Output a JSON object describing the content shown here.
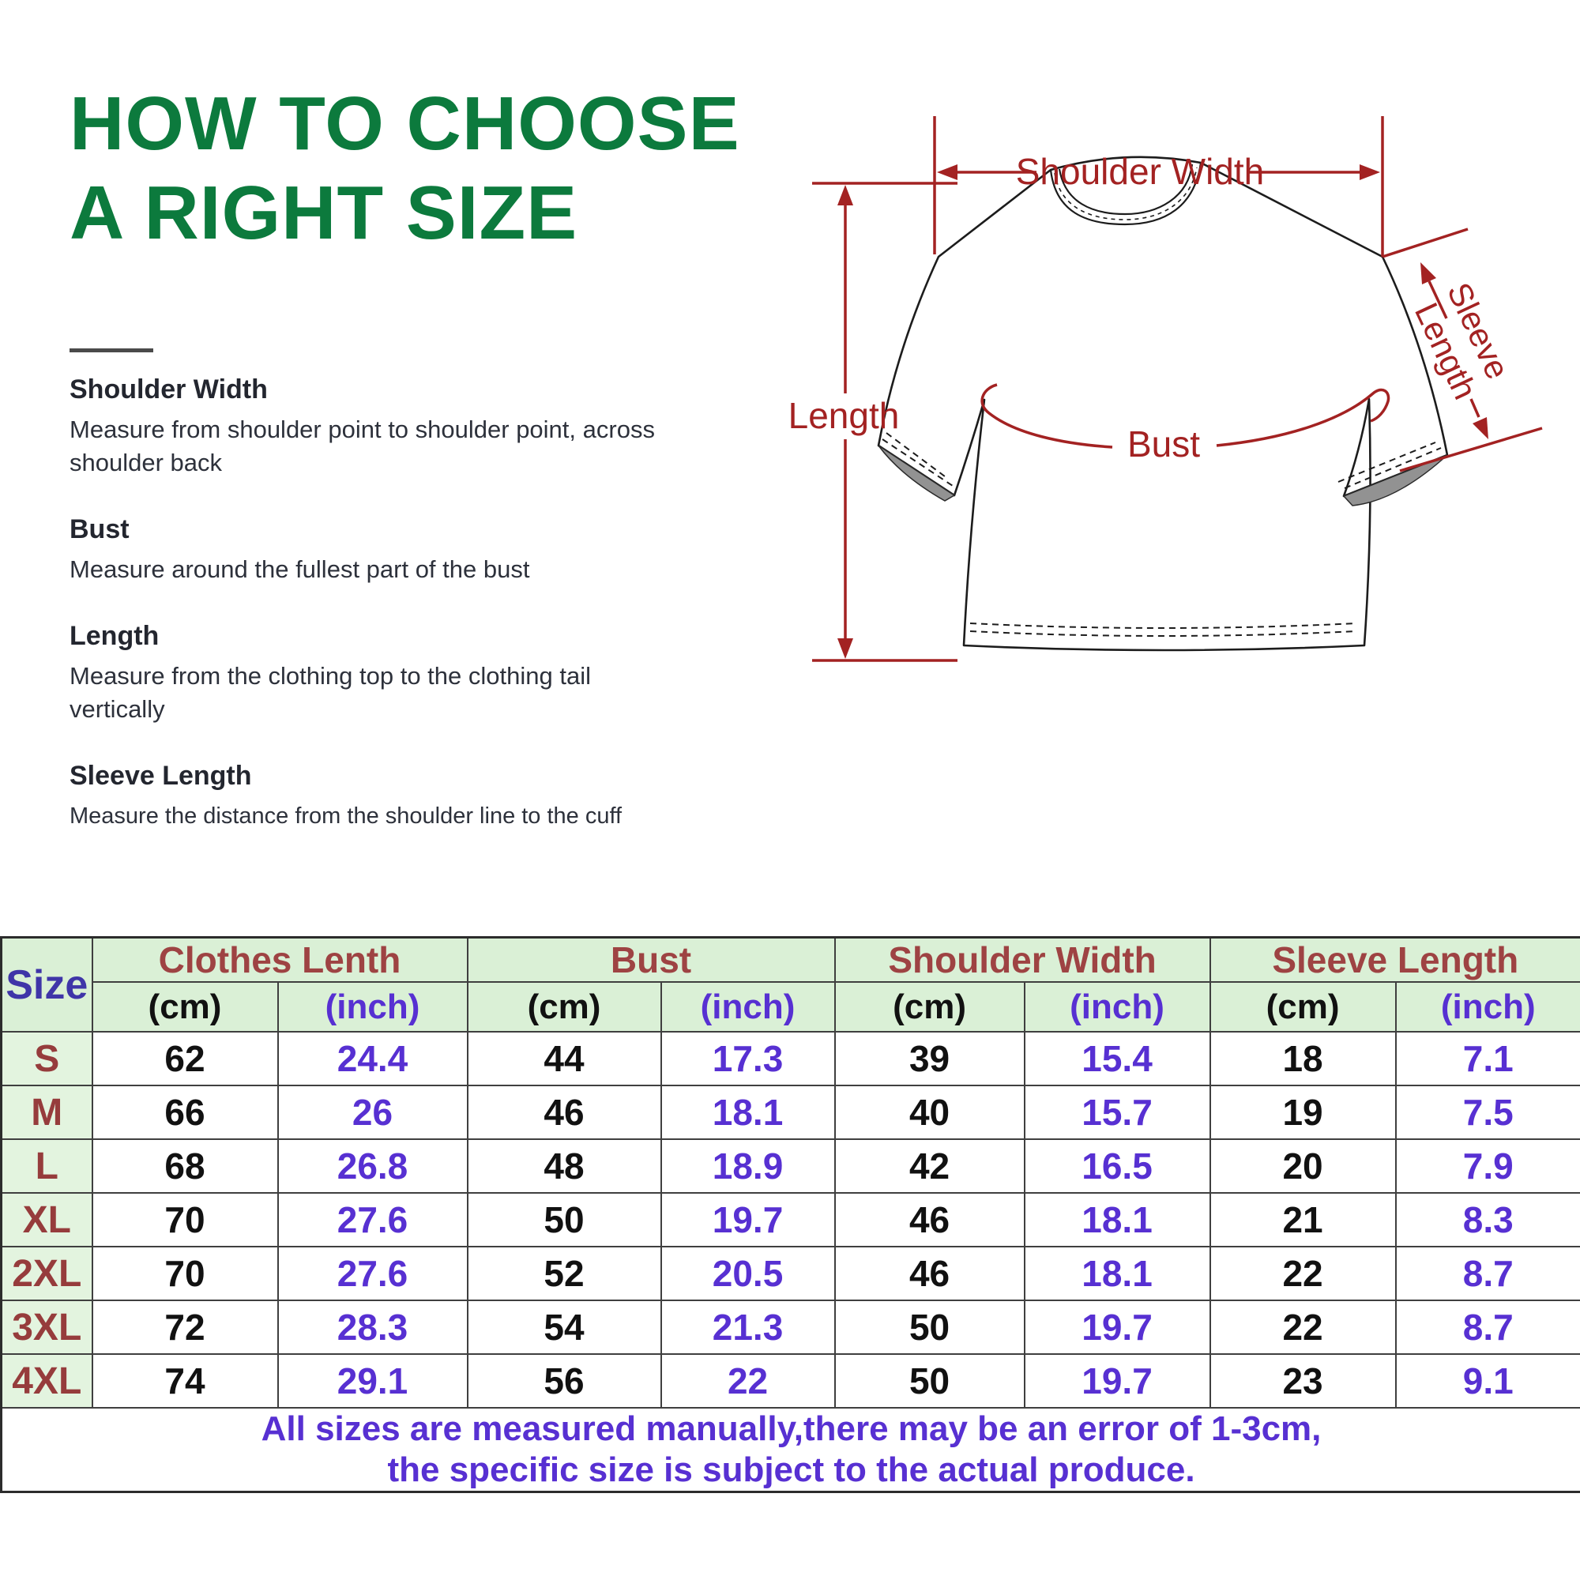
{
  "title": {
    "line1": "HOW TO CHOOSE",
    "line2": "A RIGHT SIZE"
  },
  "instructions": [
    {
      "heading": "Shoulder Width",
      "text": "Measure from shoulder point to shoulder point, across shoulder back"
    },
    {
      "heading": "Bust",
      "text": "Measure around the fullest part of the bust"
    },
    {
      "heading": "Length",
      "text": "Measure from the clothing top to the clothing tail vertically"
    },
    {
      "heading": "Sleeve Length",
      "text": "Measure the distance from the shoulder line to the cuff"
    }
  ],
  "diagram": {
    "labels": {
      "shoulder_width": "Shoulder Width",
      "length": "Length",
      "bust": "Bust",
      "sleeve_line1": "Sleeve",
      "sleeve_line2": "Length"
    }
  },
  "table": {
    "size_header": "Size",
    "col_groups": [
      "Clothes Lenth",
      "Bust",
      "Shoulder Width",
      "Sleeve Length"
    ],
    "unit_cm": "(cm)",
    "unit_inch": "(inch)",
    "rows": [
      {
        "size": "S",
        "values": [
          "62",
          "24.4",
          "44",
          "17.3",
          "39",
          "15.4",
          "18",
          "7.1"
        ]
      },
      {
        "size": "M",
        "values": [
          "66",
          "26",
          "46",
          "18.1",
          "40",
          "15.7",
          "19",
          "7.5"
        ]
      },
      {
        "size": "L",
        "values": [
          "68",
          "26.8",
          "48",
          "18.9",
          "42",
          "16.5",
          "20",
          "7.9"
        ]
      },
      {
        "size": "XL",
        "values": [
          "70",
          "27.6",
          "50",
          "19.7",
          "46",
          "18.1",
          "21",
          "8.3"
        ]
      },
      {
        "size": "2XL",
        "values": [
          "70",
          "27.6",
          "52",
          "20.5",
          "46",
          "18.1",
          "22",
          "8.7"
        ]
      },
      {
        "size": "3XL",
        "values": [
          "72",
          "28.3",
          "54",
          "21.3",
          "50",
          "19.7",
          "22",
          "8.7"
        ]
      },
      {
        "size": "4XL",
        "values": [
          "74",
          "29.1",
          "56",
          "22",
          "50",
          "19.7",
          "23",
          "9.1"
        ]
      }
    ],
    "footer": [
      "All sizes are measured manually,there may be an error of 1-3cm,",
      "the specific size is subject to the actual produce."
    ]
  },
  "colors": {
    "title_green": "#0c7a3d",
    "measure_red": "#a32222",
    "table_header_maroon": "#9e4343",
    "size_label_maroon": "#963c3c",
    "size_header_indigo": "#3f35a8",
    "inch_purple": "#5730d2",
    "table_green_bg": "#daf0d6"
  }
}
